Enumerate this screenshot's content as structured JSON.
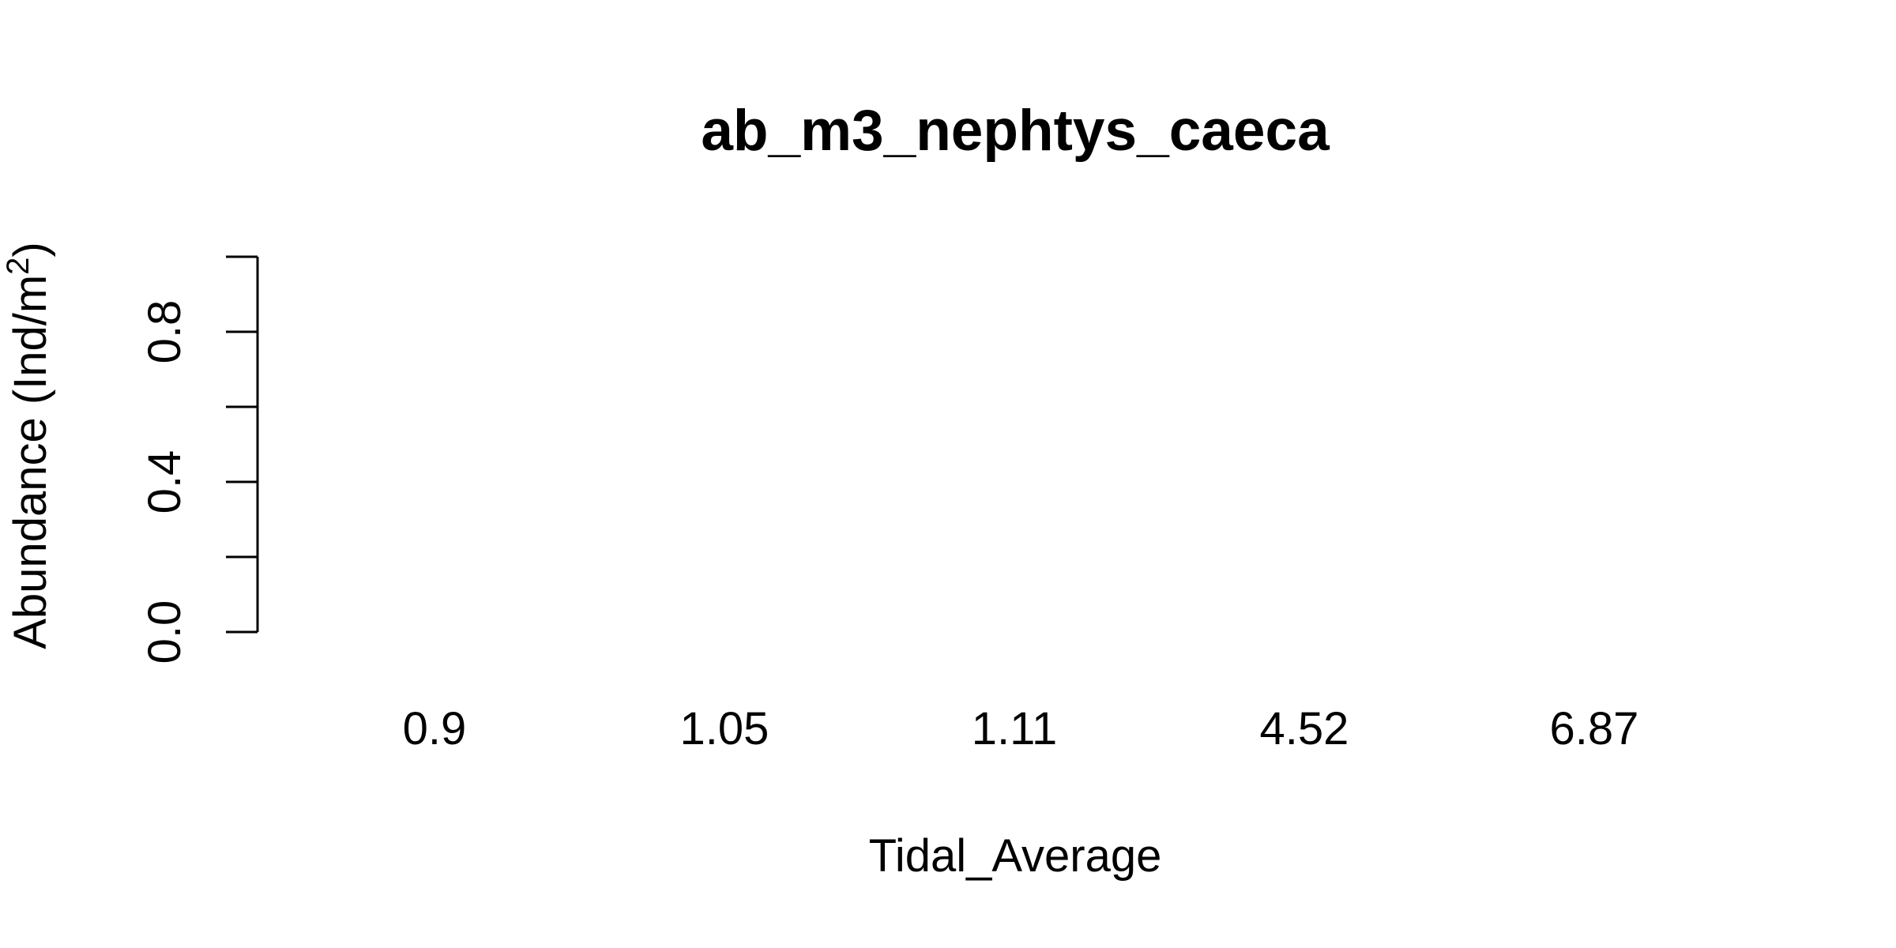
{
  "chart_data": {
    "type": "bar",
    "title": "ab_m3_nephtys_caeca",
    "xlabel": "Tidal_Average",
    "ylabel_main": "Abundance (Ind/m",
    "ylabel_sup": "2",
    "ylabel_close": ")",
    "categories": [
      "0.9",
      "1.05",
      "1.11",
      "4.52",
      "6.87"
    ],
    "values": [
      0,
      0,
      0,
      0,
      0
    ],
    "ylim": [
      0,
      1
    ],
    "yticks": [
      0.0,
      0.2,
      0.4,
      0.6,
      0.8,
      1.0
    ],
    "ytick_labels": [
      "0.0",
      "",
      "0.4",
      "",
      "0.8",
      ""
    ],
    "grid": false,
    "legend": "none",
    "bar_color": "#bebebe"
  }
}
